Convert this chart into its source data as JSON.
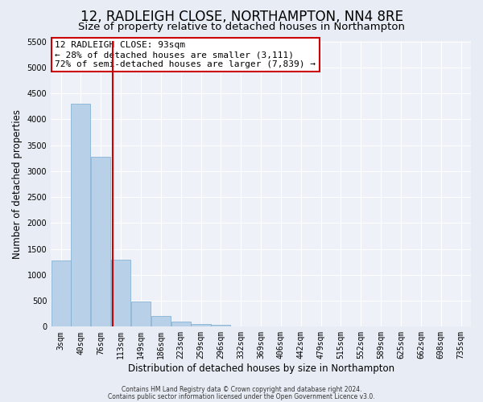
{
  "title": "12, RADLEIGH CLOSE, NORTHAMPTON, NN4 8RE",
  "subtitle": "Size of property relative to detached houses in Northampton",
  "xlabel": "Distribution of detached houses by size in Northampton",
  "ylabel": "Number of detached properties",
  "bin_labels": [
    "3sqm",
    "40sqm",
    "76sqm",
    "113sqm",
    "149sqm",
    "186sqm",
    "223sqm",
    "259sqm",
    "296sqm",
    "332sqm",
    "369sqm",
    "406sqm",
    "442sqm",
    "479sqm",
    "515sqm",
    "552sqm",
    "589sqm",
    "625sqm",
    "662sqm",
    "698sqm",
    "735sqm"
  ],
  "bar_values": [
    1270,
    4300,
    3280,
    1290,
    480,
    210,
    100,
    55,
    35,
    0,
    0,
    0,
    0,
    0,
    0,
    0,
    0,
    0,
    0,
    0,
    0
  ],
  "bar_color": "#b8d0e8",
  "bar_edge_color": "#7aaad0",
  "vline_x": 2.6,
  "vline_color": "#cc0000",
  "annotation_title": "12 RADLEIGH CLOSE: 93sqm",
  "annotation_line1": "← 28% of detached houses are smaller (3,111)",
  "annotation_line2": "72% of semi-detached houses are larger (7,839) →",
  "annotation_box_facecolor": "#ffffff",
  "annotation_box_edgecolor": "#cc0000",
  "ylim": [
    0,
    5500
  ],
  "yticks": [
    0,
    500,
    1000,
    1500,
    2000,
    2500,
    3000,
    3500,
    4000,
    4500,
    5000,
    5500
  ],
  "footer_line1": "Contains HM Land Registry data © Crown copyright and database right 2024.",
  "footer_line2": "Contains public sector information licensed under the Open Government Licence v3.0.",
  "fig_facecolor": "#e8edf5",
  "plot_facecolor": "#eef2f8",
  "grid_color": "#ffffff",
  "title_fontsize": 12,
  "subtitle_fontsize": 9.5,
  "axis_label_fontsize": 8.5,
  "tick_fontsize": 7,
  "annotation_fontsize": 8,
  "footer_fontsize": 5.5
}
